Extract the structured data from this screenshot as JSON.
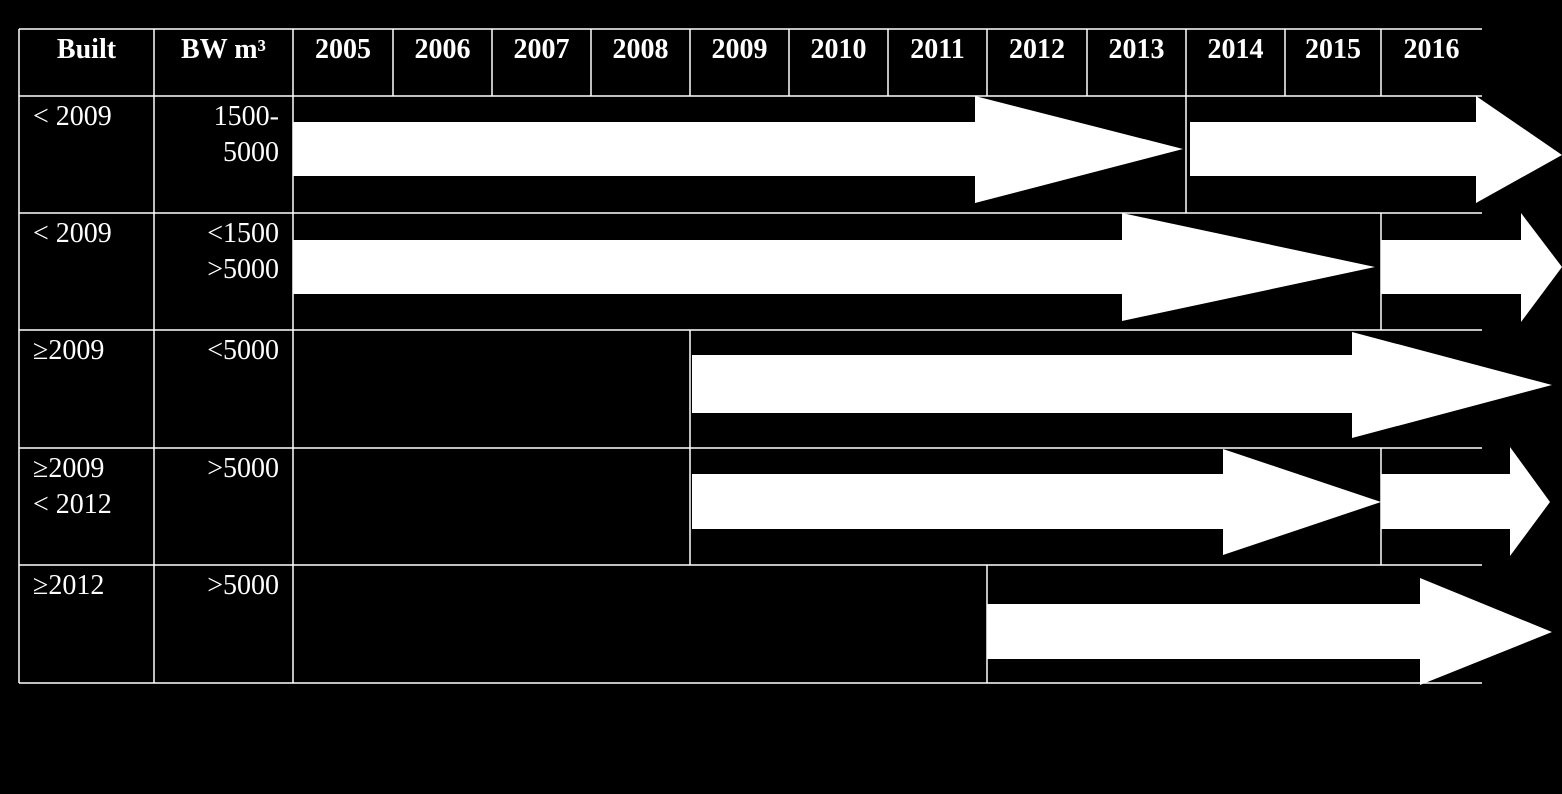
{
  "table": {
    "header": [
      "Built",
      "BW m³",
      "2005",
      "2006",
      "2007",
      "2008",
      "2009",
      "2010",
      "2011",
      "2012",
      "2013",
      "2014",
      "2015",
      "2016"
    ],
    "rows": [
      [
        [
          "< 2009"
        ],
        [
          "1500-",
          "5000"
        ]
      ],
      [
        [
          "< 2009"
        ],
        [
          "<1500",
          ">5000"
        ]
      ],
      [
        [
          "≥2009"
        ],
        [
          "<5000"
        ]
      ],
      [
        [
          "≥2009",
          "< 2012"
        ],
        [
          ">5000"
        ]
      ],
      [
        [
          "≥2012"
        ],
        [
          ">5000"
        ]
      ]
    ]
  }
}
